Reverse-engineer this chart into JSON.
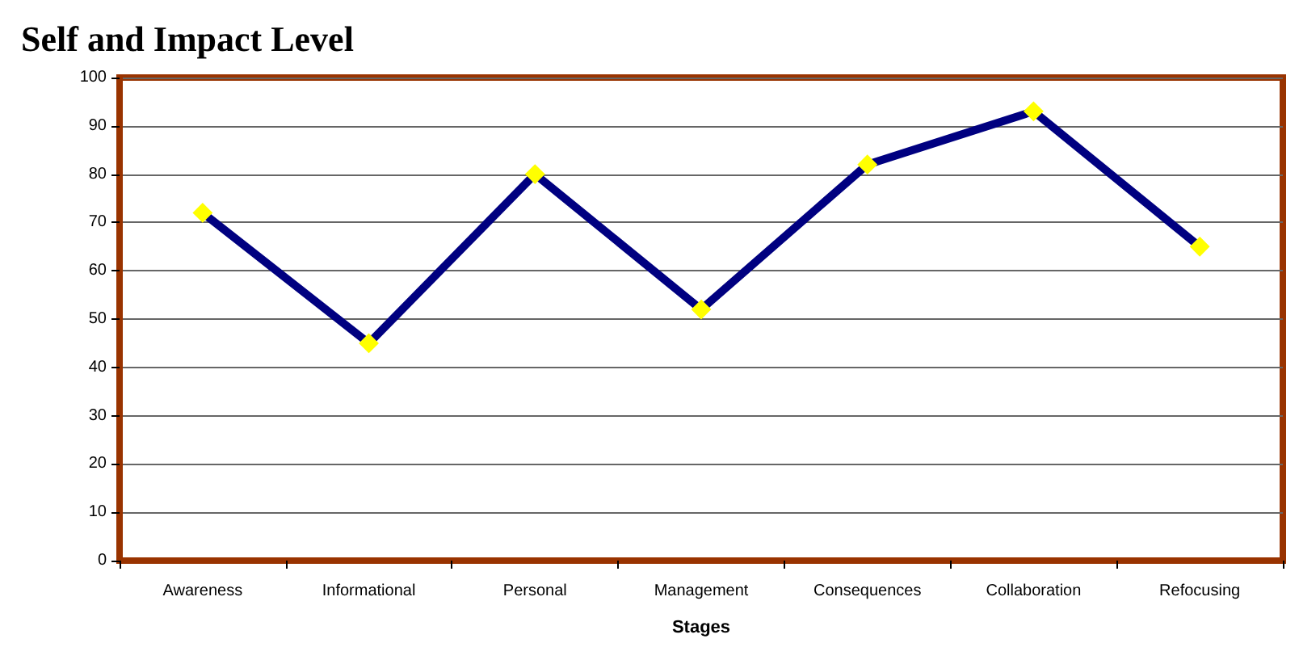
{
  "chart_data": {
    "type": "line",
    "title": "Self and Impact Level",
    "xlabel": "Stages",
    "categories": [
      "Awareness",
      "Informational",
      "Personal",
      "Management",
      "Consequences",
      "Collaboration",
      "Refocusing"
    ],
    "series": [
      {
        "color": "#000080",
        "values": [
          72,
          45,
          80,
          52,
          82,
          93,
          65
        ]
      }
    ],
    "ylim": [
      0,
      100
    ],
    "yticks": [
      0,
      10,
      20,
      30,
      40,
      50,
      60,
      70,
      80,
      90,
      100
    ],
    "grid": "y",
    "marker": "diamond",
    "line_style": "solid"
  }
}
